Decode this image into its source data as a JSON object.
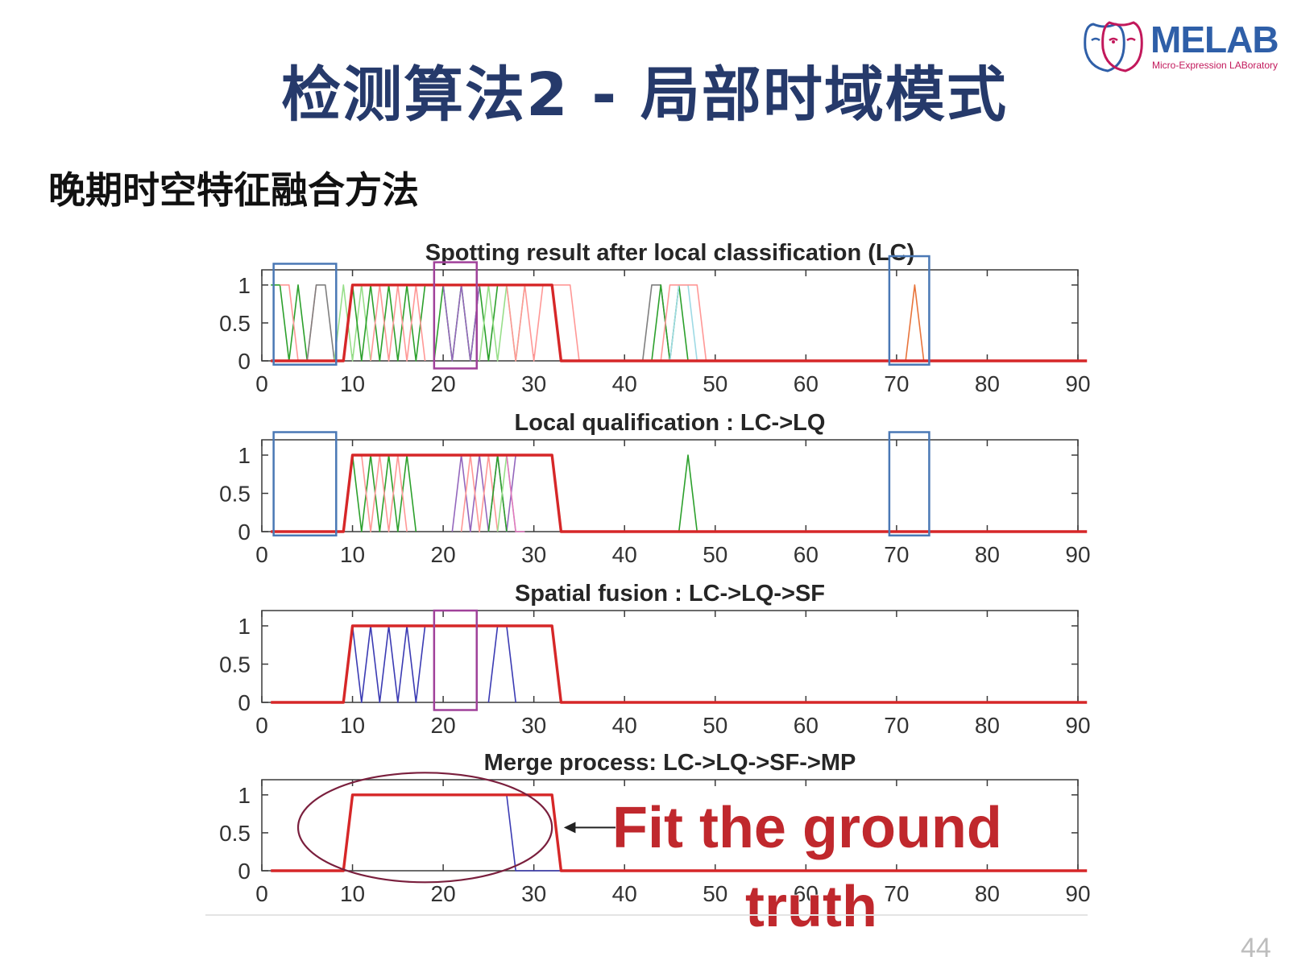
{
  "slide": {
    "title": "检测算法2 - 局部时域模式",
    "subtitle": "晚期时空特征融合方法",
    "page_number": "44"
  },
  "logo": {
    "name": "MELAB",
    "subtitle": "Micro-Expression LABoratory",
    "color": "#2f5fa8",
    "accent": "#c2185b"
  },
  "annotation": {
    "text_line1": "Fit the ground",
    "text_line2": "truth",
    "color": "#c0282d"
  },
  "chart_data": [
    {
      "type": "line",
      "title": "Spotting result after local classification (LC)",
      "xlim": [
        0,
        90
      ],
      "ylim": [
        0,
        1.2
      ],
      "xticks": [
        0,
        10,
        20,
        30,
        40,
        50,
        60,
        70,
        80,
        90
      ],
      "yticks": [
        0,
        0.5,
        1
      ],
      "ytick_labels": [
        "0",
        "0.5",
        "1"
      ],
      "ground_truth": {
        "color": "#d62728",
        "x": [
          1,
          9,
          10,
          32,
          33,
          91
        ],
        "y": [
          0,
          0,
          1,
          1,
          0,
          0
        ]
      },
      "series": [
        {
          "color": "#2ca02c",
          "x": [
            1,
            2,
            3,
            4,
            5
          ],
          "y": [
            1,
            1,
            0,
            1,
            0
          ]
        },
        {
          "color": "#ff9896",
          "x": [
            2,
            3,
            4,
            5,
            6
          ],
          "y": [
            1,
            1,
            0,
            0,
            1
          ]
        },
        {
          "color": "#7f7f7f",
          "x": [
            5,
            6,
            7,
            8
          ],
          "y": [
            0,
            1,
            1,
            0
          ]
        },
        {
          "color": "#98df8a",
          "x": [
            8,
            9,
            10,
            11,
            12
          ],
          "y": [
            0,
            1,
            0,
            1,
            0
          ]
        },
        {
          "color": "#2ca02c",
          "x": [
            10,
            11,
            12,
            13,
            14,
            15,
            16,
            17,
            18
          ],
          "y": [
            1,
            0,
            1,
            0,
            1,
            0,
            1,
            0,
            1
          ]
        },
        {
          "color": "#ff9896",
          "x": [
            12,
            13,
            14,
            15,
            16,
            17,
            18
          ],
          "y": [
            0,
            1,
            0,
            1,
            0,
            1,
            0
          ]
        },
        {
          "color": "#2ca02c",
          "x": [
            19,
            20,
            21,
            22,
            23,
            24,
            25,
            26
          ],
          "y": [
            0,
            1,
            0,
            1,
            0,
            1,
            0,
            1
          ]
        },
        {
          "color": "#9467bd",
          "x": [
            20,
            21,
            22,
            23,
            24
          ],
          "y": [
            1,
            0,
            1,
            0,
            1
          ]
        },
        {
          "color": "#98df8a",
          "x": [
            24,
            25,
            26,
            27,
            28,
            29
          ],
          "y": [
            0,
            1,
            0,
            1,
            0,
            1
          ]
        },
        {
          "color": "#ff9896",
          "x": [
            27,
            28,
            29,
            30,
            31,
            32,
            34,
            35
          ],
          "y": [
            1,
            0,
            1,
            0,
            1,
            1,
            1,
            0
          ]
        },
        {
          "color": "#7f7f7f",
          "x": [
            42,
            43,
            44,
            45
          ],
          "y": [
            0,
            1,
            1,
            0
          ]
        },
        {
          "color": "#2ca02c",
          "x": [
            43,
            44,
            45,
            46,
            47
          ],
          "y": [
            0,
            1,
            0,
            1,
            0
          ]
        },
        {
          "color": "#9edae5",
          "x": [
            45,
            46,
            47,
            48
          ],
          "y": [
            0,
            1,
            1,
            0
          ]
        },
        {
          "color": "#ff9896",
          "x": [
            44,
            45,
            48,
            49
          ],
          "y": [
            0,
            1,
            1,
            0
          ]
        },
        {
          "color": "#e8743b",
          "x": [
            71,
            72,
            73
          ],
          "y": [
            0,
            1,
            0
          ]
        }
      ],
      "highlight_boxes": [
        {
          "color": "#4a78b5",
          "x": [
            1.3,
            8.2
          ],
          "y": [
            -0.05,
            1.28
          ]
        },
        {
          "color": "#a0419a",
          "x": [
            19,
            23.7
          ],
          "y": [
            -0.1,
            1.3
          ]
        },
        {
          "color": "#4a78b5",
          "x": [
            69.2,
            73.6
          ],
          "y": [
            -0.05,
            1.38
          ]
        }
      ]
    },
    {
      "type": "line",
      "title": "Local qualification : LC->LQ",
      "xlim": [
        0,
        90
      ],
      "ylim": [
        0,
        1.2
      ],
      "xticks": [
        0,
        10,
        20,
        30,
        40,
        50,
        60,
        70,
        80,
        90
      ],
      "yticks": [
        0,
        0.5,
        1
      ],
      "ytick_labels": [
        "0",
        "0.5",
        "1"
      ],
      "ground_truth": {
        "color": "#d62728",
        "x": [
          1,
          9,
          10,
          32,
          33,
          91
        ],
        "y": [
          0,
          0,
          1,
          1,
          0,
          0
        ]
      },
      "series": [
        {
          "color": "#2ca02c",
          "x": [
            10,
            11,
            12,
            13,
            14,
            15,
            16,
            17
          ],
          "y": [
            1,
            0,
            1,
            0,
            1,
            0,
            1,
            0
          ]
        },
        {
          "color": "#ff9896",
          "x": [
            11,
            12,
            13,
            14,
            15,
            16
          ],
          "y": [
            1,
            0,
            1,
            0,
            1,
            0
          ]
        },
        {
          "color": "#9467bd",
          "x": [
            21,
            22,
            23,
            24,
            25,
            26,
            27,
            28
          ],
          "y": [
            0,
            1,
            0,
            1,
            0,
            1,
            0,
            1
          ]
        },
        {
          "color": "#ff9896",
          "x": [
            22,
            23,
            24,
            25,
            26
          ],
          "y": [
            0,
            1,
            0,
            1,
            0
          ]
        },
        {
          "color": "#2ca02c",
          "x": [
            25,
            26,
            27
          ],
          "y": [
            0,
            1,
            0
          ]
        },
        {
          "color": "#98df8a",
          "x": [
            26,
            27,
            28
          ],
          "y": [
            0,
            1,
            0
          ]
        },
        {
          "color": "#e377c2",
          "x": [
            27,
            28,
            29
          ],
          "y": [
            1,
            0,
            0
          ]
        },
        {
          "color": "#2ca02c",
          "x": [
            46,
            47,
            48
          ],
          "y": [
            0,
            1,
            0
          ]
        }
      ],
      "highlight_boxes": [
        {
          "color": "#4a78b5",
          "x": [
            1.3,
            8.2
          ],
          "y": [
            -0.05,
            1.3
          ]
        },
        {
          "color": "#4a78b5",
          "x": [
            69.2,
            73.6
          ],
          "y": [
            -0.05,
            1.3
          ]
        }
      ]
    },
    {
      "type": "line",
      "title": "Spatial fusion : LC->LQ->SF",
      "xlim": [
        0,
        90
      ],
      "ylim": [
        0,
        1.2
      ],
      "xticks": [
        0,
        10,
        20,
        30,
        40,
        50,
        60,
        70,
        80,
        90
      ],
      "yticks": [
        0,
        0.5,
        1
      ],
      "ytick_labels": [
        "0",
        "0.5",
        "1"
      ],
      "ground_truth": {
        "color": "#d62728",
        "x": [
          1,
          9,
          10,
          32,
          33,
          91
        ],
        "y": [
          0,
          0,
          1,
          1,
          0,
          0
        ]
      },
      "series": [
        {
          "color": "#3b3bb3",
          "x": [
            10,
            11,
            12,
            13,
            14,
            15,
            16,
            17,
            18
          ],
          "y": [
            1,
            0,
            1,
            0,
            1,
            0,
            1,
            0,
            1
          ]
        },
        {
          "color": "#3b3bb3",
          "x": [
            25,
            26,
            27,
            28
          ],
          "y": [
            0,
            1,
            1,
            0
          ]
        }
      ],
      "highlight_boxes": [
        {
          "color": "#a0419a",
          "x": [
            19,
            23.7
          ],
          "y": [
            -0.1,
            1.2
          ]
        }
      ]
    },
    {
      "type": "line",
      "title": "Merge process: LC->LQ->SF->MP",
      "xlim": [
        0,
        90
      ],
      "ylim": [
        0,
        1.2
      ],
      "xticks": [
        0,
        10,
        20,
        30,
        40,
        50,
        60,
        70,
        80,
        90
      ],
      "yticks": [
        0,
        0.5,
        1
      ],
      "ytick_labels": [
        "0",
        "0.5",
        "1"
      ],
      "ground_truth": {
        "color": "#d62728",
        "x": [
          1,
          9,
          10,
          32,
          33,
          91
        ],
        "y": [
          0,
          0,
          1,
          1,
          0,
          0
        ]
      },
      "series": [
        {
          "color": "#3b3bb3",
          "x": [
            1,
            9,
            10,
            27,
            28,
            33
          ],
          "y": [
            0,
            0,
            1,
            1,
            0,
            0
          ]
        }
      ],
      "highlight_boxes": []
    }
  ]
}
